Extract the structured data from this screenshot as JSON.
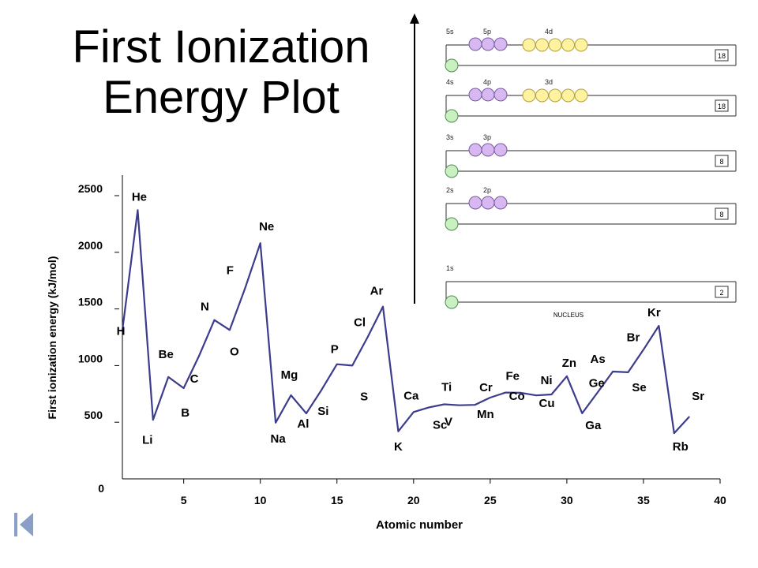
{
  "title": {
    "line1": "First Ionization",
    "line2": "Energy Plot"
  },
  "chart_data": {
    "type": "line",
    "title": "First Ionization Energy Plot",
    "xlabel": "Atomic number",
    "ylabel": "First ionization energy (kJ/mol)",
    "xlim": [
      1,
      40
    ],
    "ylim": [
      0,
      2500
    ],
    "xticks": [
      5,
      10,
      15,
      20,
      25,
      30,
      35,
      40
    ],
    "yticks": [
      0,
      500,
      1000,
      1500,
      2000,
      2500
    ],
    "series_color": "#3c3c8c",
    "x": [
      1,
      2,
      3,
      4,
      5,
      6,
      7,
      8,
      9,
      10,
      11,
      12,
      13,
      14,
      15,
      16,
      17,
      18,
      19,
      20,
      21,
      22,
      23,
      24,
      25,
      26,
      27,
      28,
      29,
      30,
      31,
      32,
      33,
      34,
      35,
      36,
      37,
      38
    ],
    "y": [
      1312,
      2372,
      520,
      899,
      801,
      1086,
      1402,
      1314,
      1681,
      2081,
      496,
      738,
      578,
      786,
      1012,
      1000,
      1251,
      1521,
      419,
      590,
      631,
      658,
      650,
      653,
      717,
      762,
      760,
      737,
      745,
      906,
      579,
      762,
      947,
      941,
      1140,
      1351,
      403,
      550
    ],
    "point_labels": [
      "H",
      "He",
      "Li",
      "Be",
      "B",
      "C",
      "N",
      "O",
      "F",
      "Ne",
      "Na",
      "Mg",
      "Al",
      "Si",
      "P",
      "S",
      "Cl",
      "Ar",
      "K",
      "Ca",
      "Sc",
      "Ti",
      "V",
      "Cr",
      "Mn",
      "Fe",
      "Co",
      "Ni",
      "Cu",
      "Zn",
      "Ga",
      "Ge",
      "As",
      "Se",
      "Br",
      "Kr",
      "Rb",
      "Sr"
    ],
    "grid": false
  },
  "diagram": {
    "arrow_color": "#000000",
    "shells": [
      {
        "subshells": [
          "5s",
          "5p",
          "4d"
        ],
        "p": 3,
        "d": 5,
        "capacity": "18"
      },
      {
        "subshells": [
          "4s",
          "4p",
          "3d"
        ],
        "p": 3,
        "d": 5,
        "capacity": "18"
      },
      {
        "subshells": [
          "3s",
          "3p"
        ],
        "p": 3,
        "d": 0,
        "capacity": "8"
      },
      {
        "subshells": [
          "2s",
          "2p"
        ],
        "p": 3,
        "d": 0,
        "capacity": "8"
      },
      {
        "subshells": [
          "1s"
        ],
        "p": 0,
        "d": 0,
        "capacity": "2"
      }
    ],
    "nucleus_label": "NUCLEUS",
    "colors": {
      "s": "#c8f0c0",
      "p": "#d8b8f0",
      "d": "#fff3a0"
    }
  },
  "nav": {
    "icon": "first-slide-icon",
    "color": "#8a9fc8"
  }
}
